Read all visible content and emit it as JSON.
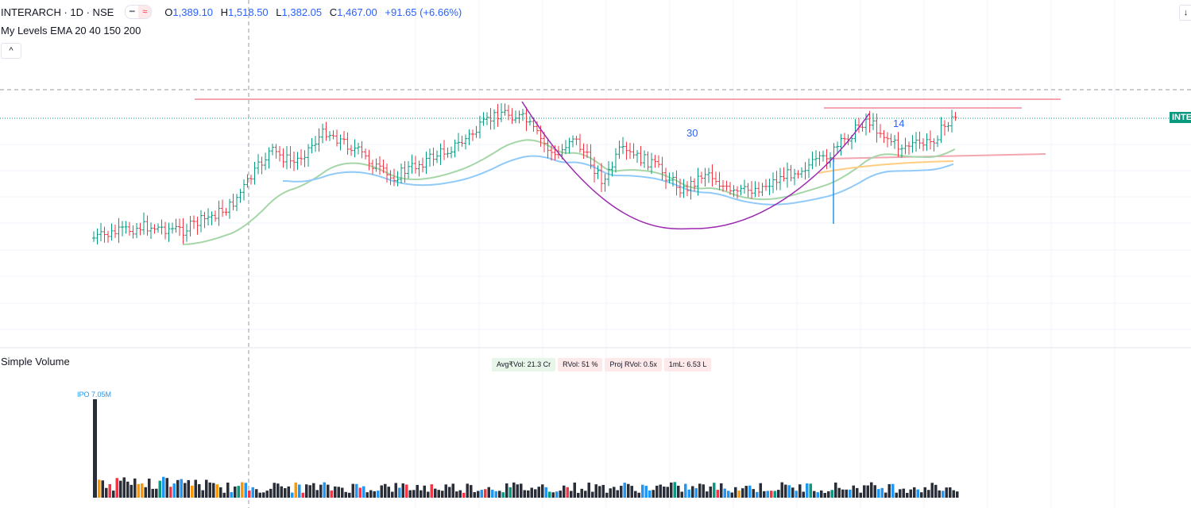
{
  "header": {
    "symbol": "INTERARCH · 1D · NSE",
    "ohlc": {
      "o_label": "O",
      "o": "1,389.10",
      "h_label": "H",
      "h": "1,518.50",
      "l_label": "L",
      "l": "1,382.05",
      "c_label": "C",
      "c": "1,467.00",
      "change": "+91.65 (+6.66%)"
    },
    "indicator": "My Levels EMA 20 40 150 200",
    "collapse_icon": "chevron-up-icon",
    "corner_icon": "arrow-down-icon"
  },
  "price_tag": "INTERARCH",
  "annotations": {
    "left_count": "30",
    "right_count": "14"
  },
  "volume_pane": {
    "title": "Simple Volume",
    "ipo_label": "IPO 7.05M",
    "stats": [
      {
        "label": "Avg₹Vol: 21.3 Cr",
        "tone": "green"
      },
      {
        "label": "RVol: 51 %",
        "tone": "red"
      },
      {
        "label": "Proj RVol: 0.5x",
        "tone": "red"
      },
      {
        "label": "1mL: 6.53 L",
        "tone": "red"
      }
    ]
  },
  "colors": {
    "up": "#089981",
    "down": "#f23645",
    "ema20": "#a5d6a7",
    "ema40": "#90caf9",
    "ema150": "#ffcc80",
    "level": "#f4a6b0",
    "cup": "#9c27b0",
    "volume": "#2a2e39",
    "volume_blue": "#2196f3"
  }
}
